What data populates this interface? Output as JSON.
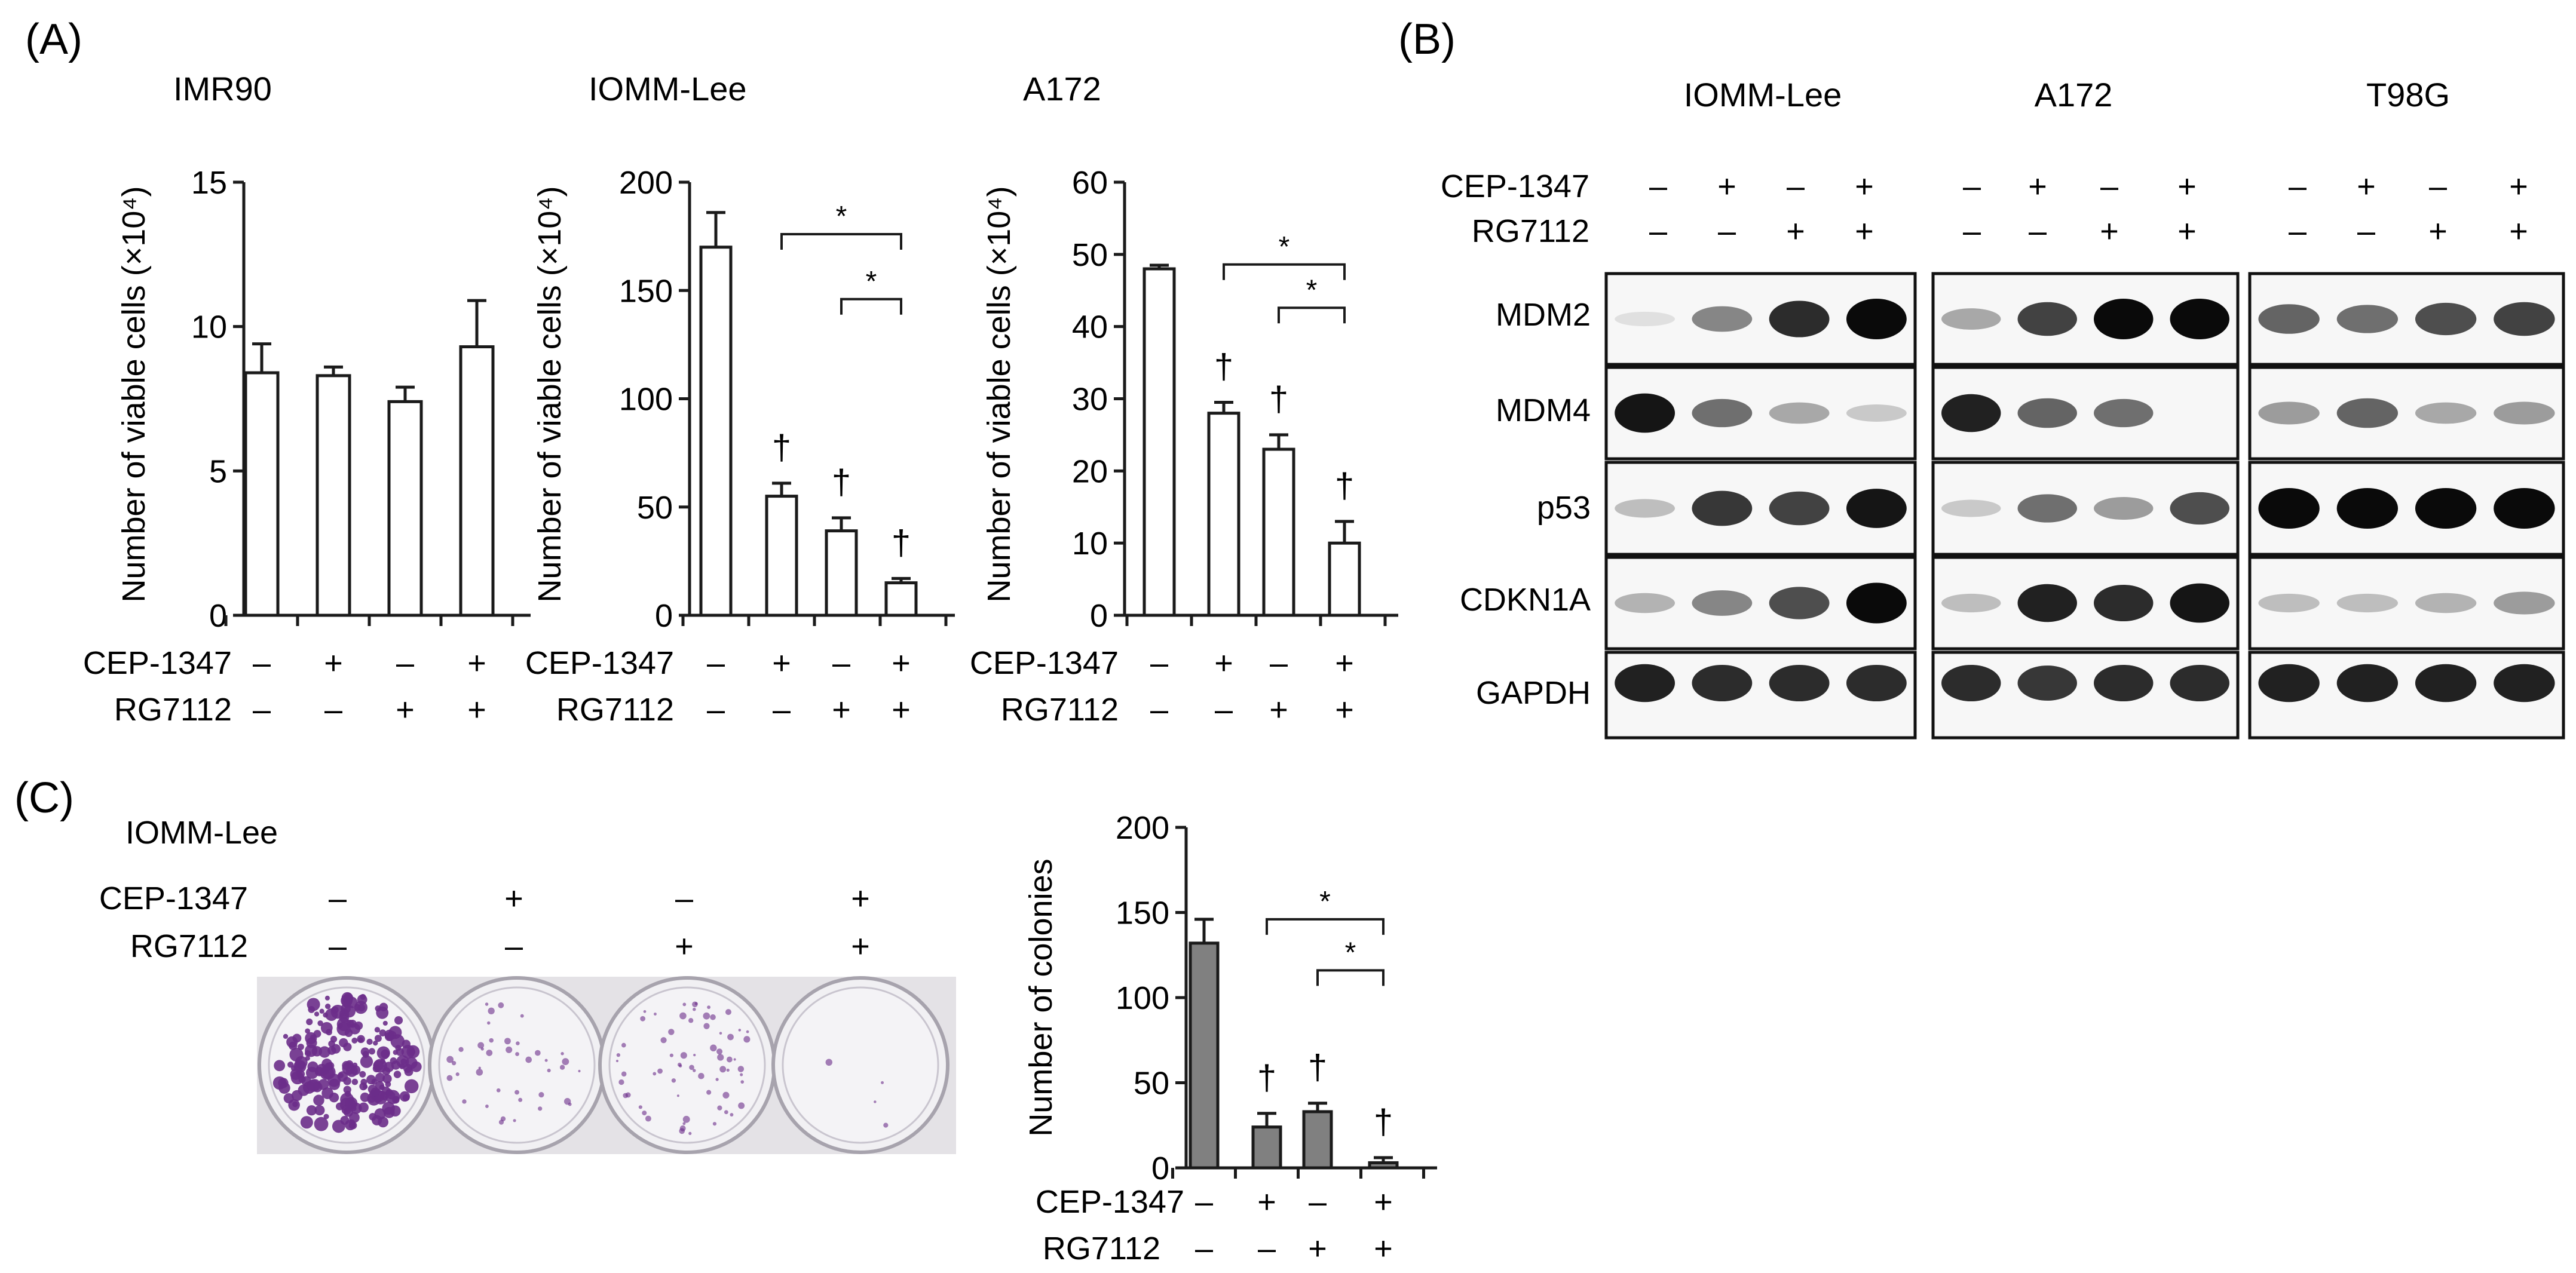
{
  "figure": {
    "panel_labels": [
      "(A)",
      "(B)",
      "(C)"
    ],
    "treatment_rows": {
      "cep": "CEP-1347",
      "rg": "RG7112",
      "cep_signs": [
        "–",
        "+",
        "–",
        "+"
      ],
      "rg_signs": [
        "–",
        "–",
        "+",
        "+"
      ]
    },
    "colors": {
      "bar_open": "#ffffff",
      "bar_gray": "#808080",
      "ink": "#1a1a1a",
      "stain": "#6b2d8a"
    }
  },
  "chart_data": [
    {
      "type": "bar",
      "title": "IMR90",
      "ylabel": "Number of viable cells (×10⁴)",
      "ylim": [
        0,
        15
      ],
      "yticks": [
        0,
        5,
        10,
        15
      ],
      "categories": [
        "CEP–/RG–",
        "CEP+/RG–",
        "CEP–/RG+",
        "CEP+/RG+"
      ],
      "values": [
        8.4,
        8.3,
        7.4,
        9.3
      ],
      "errors": [
        1.0,
        0.3,
        0.5,
        1.6
      ],
      "dagger": [
        false,
        false,
        false,
        false
      ],
      "brackets": []
    },
    {
      "type": "bar",
      "title": "IOMM-Lee",
      "ylabel": "Number of viable cells (×10⁴)",
      "ylim": [
        0,
        200
      ],
      "yticks": [
        0,
        50,
        100,
        150,
        200
      ],
      "categories": [
        "CEP–/RG–",
        "CEP+/RG–",
        "CEP–/RG+",
        "CEP+/RG+"
      ],
      "values": [
        170,
        55,
        39,
        15
      ],
      "errors": [
        16,
        6,
        6,
        2
      ],
      "dagger": [
        false,
        true,
        true,
        true
      ],
      "brackets": [
        {
          "from": 1,
          "to": 3,
          "label": "*",
          "level": 0.88
        },
        {
          "from": 2,
          "to": 3,
          "label": "*",
          "level": 0.73
        }
      ]
    },
    {
      "type": "bar",
      "title": "A172",
      "ylabel": "Number of viable cells (×10⁴)",
      "ylim": [
        0,
        60
      ],
      "yticks": [
        0,
        10,
        20,
        30,
        40,
        50,
        60
      ],
      "categories": [
        "CEP–/RG–",
        "CEP+/RG–",
        "CEP–/RG+",
        "CEP+/RG+"
      ],
      "values": [
        48,
        28,
        23,
        10
      ],
      "errors": [
        0.5,
        1.5,
        2,
        3
      ],
      "dagger": [
        false,
        true,
        true,
        true
      ],
      "brackets": [
        {
          "from": 1,
          "to": 3,
          "label": "*",
          "level": 0.81
        },
        {
          "from": 2,
          "to": 3,
          "label": "*",
          "level": 0.71
        }
      ]
    },
    {
      "type": "bar",
      "title": "",
      "ylabel": "Number of colonies",
      "ylim": [
        0,
        200
      ],
      "yticks": [
        0,
        50,
        100,
        150,
        200
      ],
      "categories": [
        "CEP–/RG–",
        "CEP+/RG–",
        "CEP–/RG+",
        "CEP+/RG+"
      ],
      "values": [
        132,
        24,
        33,
        3
      ],
      "errors": [
        14,
        8,
        5,
        3
      ],
      "dagger": [
        false,
        true,
        true,
        true
      ],
      "brackets": [
        {
          "from": 1,
          "to": 3,
          "label": "*",
          "level": 0.73
        },
        {
          "from": 2,
          "to": 3,
          "label": "*",
          "level": 0.58
        }
      ]
    }
  ],
  "blot": {
    "cell_lines": [
      "IOMM-Lee",
      "A172",
      "T98G"
    ],
    "proteins": [
      "MDM2",
      "MDM4",
      "p53",
      "CDKN1A",
      "GAPDH"
    ],
    "intensity": {
      "IOMM-Lee": [
        [
          0.05,
          0.45,
          0.85,
          1.0
        ],
        [
          0.95,
          0.55,
          0.3,
          0.15
        ],
        [
          0.2,
          0.8,
          0.75,
          0.95
        ],
        [
          0.25,
          0.45,
          0.7,
          1.0
        ],
        [
          0.9,
          0.85,
          0.85,
          0.85
        ]
      ],
      "A172": [
        [
          0.3,
          0.75,
          1.0,
          1.0
        ],
        [
          0.9,
          0.6,
          0.55,
          0.0
        ],
        [
          0.15,
          0.55,
          0.35,
          0.7
        ],
        [
          0.2,
          0.9,
          0.85,
          0.95
        ],
        [
          0.85,
          0.8,
          0.85,
          0.85
        ]
      ],
      "T98G": [
        [
          0.6,
          0.55,
          0.7,
          0.75
        ],
        [
          0.35,
          0.6,
          0.3,
          0.35
        ],
        [
          1.0,
          1.0,
          1.0,
          1.0
        ],
        [
          0.2,
          0.2,
          0.25,
          0.35
        ],
        [
          0.9,
          0.9,
          0.9,
          0.9
        ]
      ]
    }
  },
  "colony_panel": {
    "cell_line": "IOMM-Lee",
    "colony_density": [
      1.0,
      0.18,
      0.3,
      0.02
    ]
  }
}
